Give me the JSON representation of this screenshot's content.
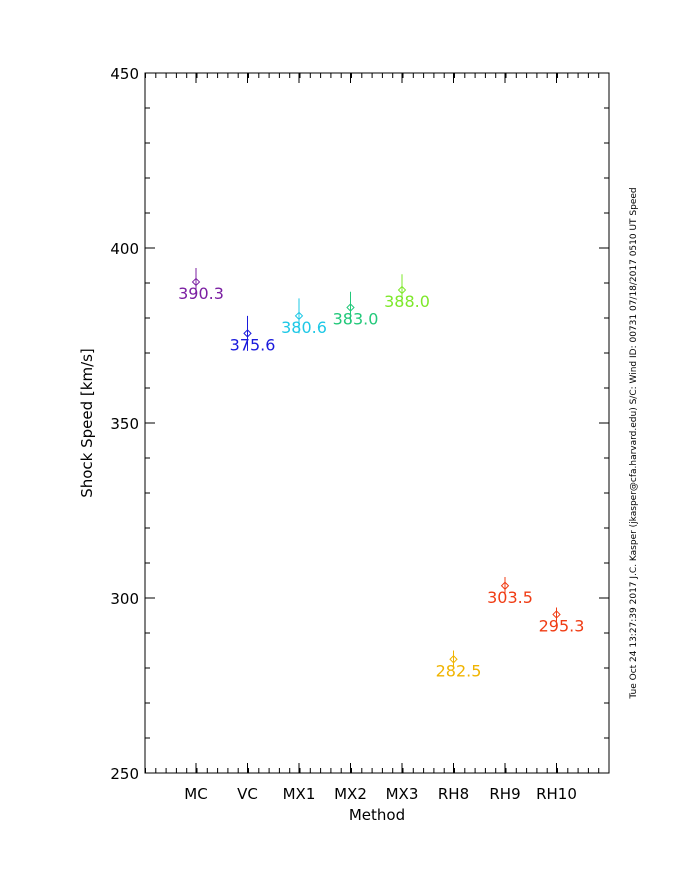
{
  "chart_data": {
    "type": "scatter",
    "title": "",
    "xlabel": "Method",
    "ylabel": "Shock Speed [km/s]",
    "ylim": [
      250,
      450
    ],
    "yticks": [
      250,
      300,
      350,
      400,
      450
    ],
    "ytick_labels": [
      "250",
      "300",
      "350",
      "400",
      "450"
    ],
    "grid": false,
    "categories": [
      "MC",
      "VC",
      "MX1",
      "MX2",
      "MX3",
      "RH8",
      "RH9",
      "RH10"
    ],
    "points": [
      {
        "x": "MC",
        "y": 390.3,
        "err": 4.0,
        "label": "390.3",
        "color": "#7b1fa2"
      },
      {
        "x": "VC",
        "y": 375.6,
        "err": 5.0,
        "label": "375.6",
        "color": "#1a1adc"
      },
      {
        "x": "MX1",
        "y": 380.6,
        "err": 5.0,
        "label": "380.6",
        "color": "#1ec8e6"
      },
      {
        "x": "MX2",
        "y": 383.0,
        "err": 4.5,
        "label": "383.0",
        "color": "#22c87a"
      },
      {
        "x": "MX3",
        "y": 388.0,
        "err": 4.5,
        "label": "388.0",
        "color": "#7ee82a"
      },
      {
        "x": "RH8",
        "y": 282.5,
        "err": 2.5,
        "label": "282.5",
        "color": "#f0b400"
      },
      {
        "x": "RH9",
        "y": 303.5,
        "err": 2.5,
        "label": "303.5",
        "color": "#f03c14"
      },
      {
        "x": "RH10",
        "y": 295.3,
        "err": 2.0,
        "label": "295.3",
        "color": "#f03c14"
      }
    ],
    "side_annotation": "Tue Oct 24 13:27:39 2017   J.C. Kasper (jkasper@cfa.harvard.edu)   S/C: Wind ID: 00731  07/18/2017   0510 UT Speed"
  }
}
